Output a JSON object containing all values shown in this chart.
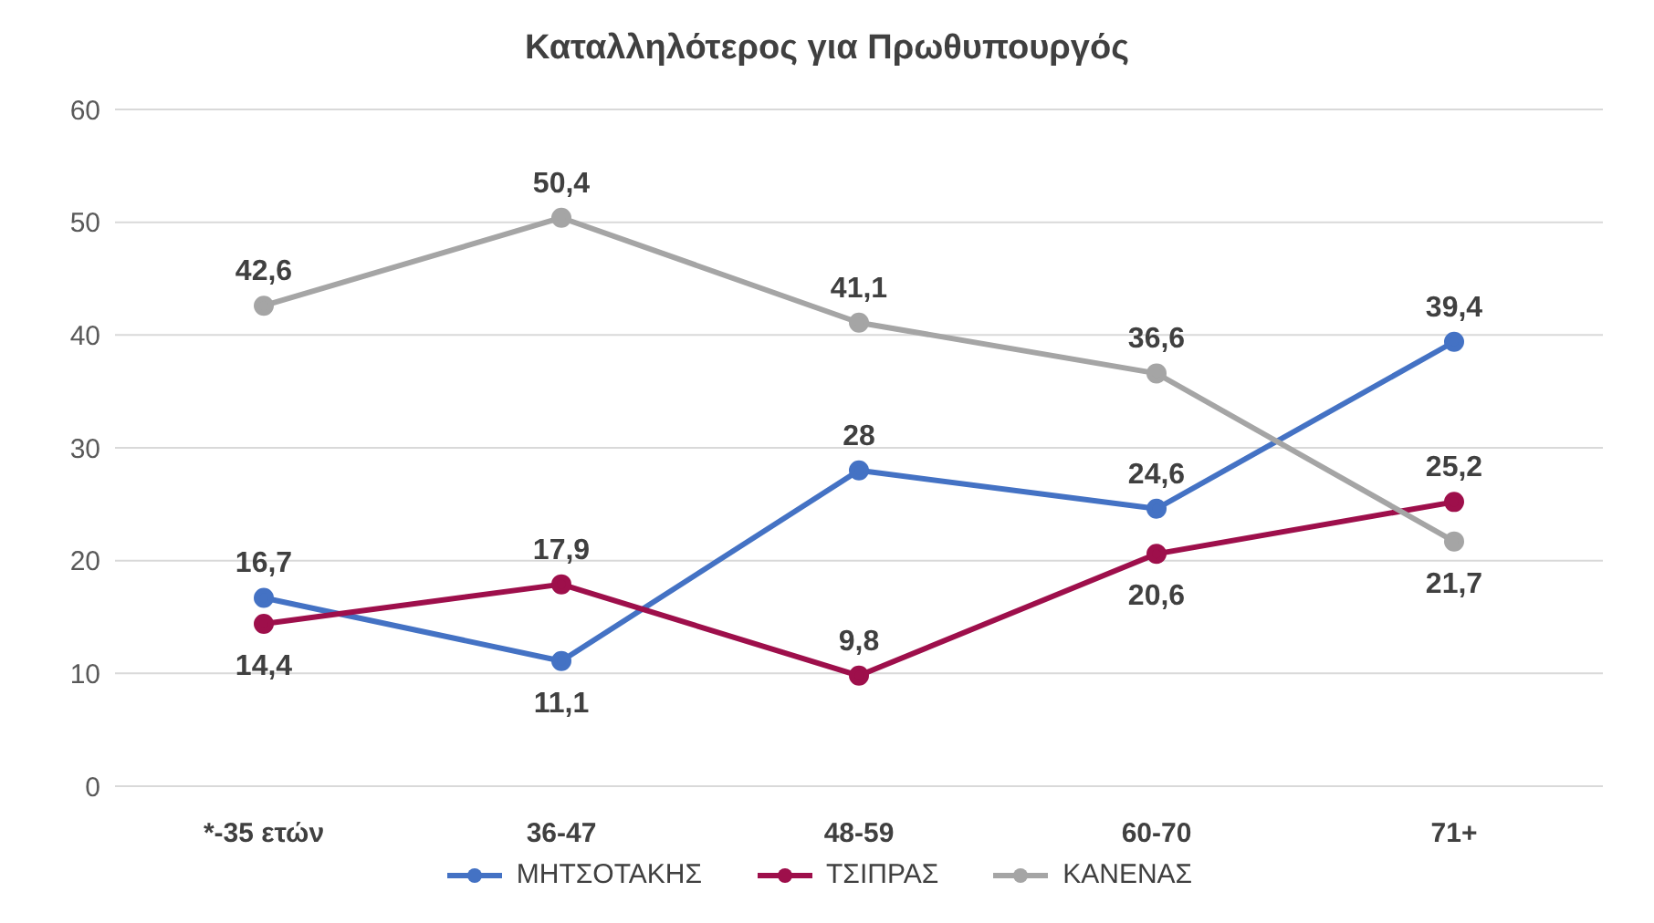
{
  "chart_data": {
    "type": "line",
    "title": "Καταλληλότερος για Πρωθυπουργός",
    "categories": [
      "*-35 ετών",
      "36-47",
      "48-59",
      "60-70",
      "71+"
    ],
    "series": [
      {
        "name": "ΜΗΤΣΟΤΑΚΗΣ",
        "color": "#4472c4",
        "values": [
          16.7,
          11.1,
          28,
          24.6,
          39.4
        ],
        "value_labels": [
          "16,7",
          "11,1",
          "28",
          "24,6",
          "39,4"
        ]
      },
      {
        "name": "ΤΣΙΠΡΑΣ",
        "color": "#9e0f4b",
        "values": [
          14.4,
          17.9,
          9.8,
          20.6,
          25.2
        ],
        "value_labels": [
          "14,4",
          "17,9",
          "9,8",
          "20,6",
          "25,2"
        ]
      },
      {
        "name": "ΚΑΝΕΝΑΣ",
        "color": "#a5a5a5",
        "values": [
          42.6,
          50.4,
          41.1,
          36.6,
          21.7
        ],
        "value_labels": [
          "42,6",
          "50,4",
          "41,1",
          "36,6",
          "21,7"
        ]
      }
    ],
    "ylim": [
      0,
      60
    ],
    "yticks": [
      0,
      10,
      20,
      30,
      40,
      50,
      60
    ],
    "grid": "y",
    "legend": "bottom",
    "marker": "circle",
    "line_style": "solid"
  }
}
